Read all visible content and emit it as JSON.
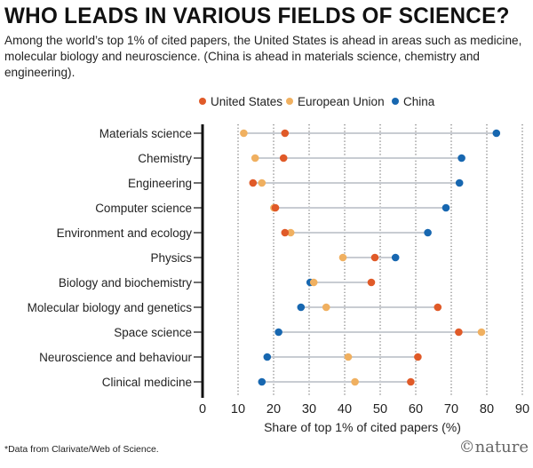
{
  "title": "WHO LEADS IN VARIOUS FIELDS OF SCIENCE?",
  "subtitle": "Among the world’s top 1% of cited papers, the United States is ahead in areas such as medicine, molecular biology and neuroscience. (China is ahead in materials science, chemistry and engineering).",
  "footnote": "*Data from Clarivate/Web of Science.",
  "logo": "nature",
  "chart_data": {
    "type": "dot-plot",
    "xlabel": "Share of top 1% of cited papers (%)",
    "xlim": [
      0,
      90
    ],
    "xticks": [
      0,
      10,
      20,
      30,
      40,
      50,
      60,
      70,
      80,
      90
    ],
    "grid": "vertical dotted",
    "legend": "top",
    "categories": [
      "Materials science",
      "Chemistry",
      "Engineering",
      "Computer science",
      "Environment and ecology",
      "Physics",
      "Biology and biochemistry",
      "Molecular biology and genetics",
      "Space science",
      "Neuroscience and behaviour",
      "Clinical medicine"
    ],
    "series": [
      {
        "name": "United States",
        "color": "#e05a28",
        "values": [
          23.2,
          22.8,
          14.2,
          20.5,
          23.2,
          48.5,
          47.5,
          66.2,
          72.1,
          60.6,
          58.6
        ]
      },
      {
        "name": "European Union",
        "color": "#f0b060",
        "values": [
          11.6,
          14.8,
          16.7,
          20.1,
          24.8,
          39.5,
          31.3,
          34.8,
          78.5,
          41.0,
          42.9
        ]
      },
      {
        "name": "China",
        "color": "#1767b0",
        "values": [
          82.7,
          72.9,
          72.3,
          68.5,
          63.4,
          54.3,
          30.3,
          27.7,
          21.4,
          18.2,
          16.7
        ]
      }
    ]
  }
}
